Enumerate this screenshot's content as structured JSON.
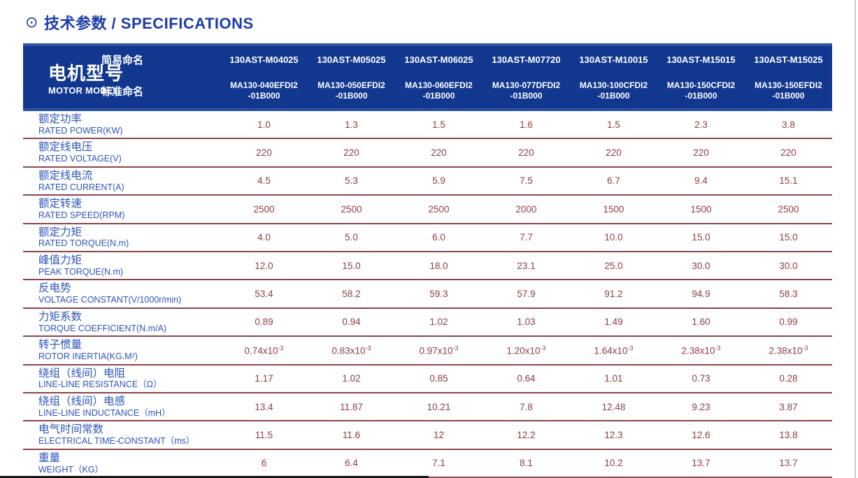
{
  "page": {
    "title_icon": "⊙",
    "title": "技术参数 / SPECIFICATIONS"
  },
  "colors": {
    "header_bg": "#11378f",
    "header_edge": "#2c51a5",
    "label_blue": "#2d54bc",
    "value_red": "#8e3d40",
    "separator": "#8d4548",
    "title_blue": "#1c3ca8"
  },
  "table": {
    "header": {
      "row_label_cn": "电机型号",
      "row_label_en": "MOTOR MODEL",
      "simple_name_label": "简易命名",
      "standard_name_label": "标准命名",
      "columns": [
        {
          "simple": "130AST-M04025",
          "standard_line1": "MA130-040EFDI2",
          "standard_line2": "-01B000"
        },
        {
          "simple": "130AST-M05025",
          "standard_line1": "MA130-050EFDI2",
          "standard_line2": "-01B000"
        },
        {
          "simple": "130AST-M06025",
          "standard_line1": "MA130-060EFDI2",
          "standard_line2": "-01B000"
        },
        {
          "simple": "130AST-M07720",
          "standard_line1": "MA130-077DFDI2",
          "standard_line2": "-01B000"
        },
        {
          "simple": "130AST-M10015",
          "standard_line1": "MA130-100CFDI2",
          "standard_line2": "-01B000"
        },
        {
          "simple": "130AST-M15015",
          "standard_line1": "MA130-150CFDI2",
          "standard_line2": "-01B000"
        },
        {
          "simple": "130AST-M15025",
          "standard_line1": "MA130-150EFDI2",
          "standard_line2": "-01B000"
        }
      ]
    },
    "rows": [
      {
        "cn": "额定功率",
        "en": "RATED POWER(KW)",
        "values": [
          "1.0",
          "1.3",
          "1.5",
          "1.6",
          "1.5",
          "2.3",
          "3.8"
        ]
      },
      {
        "cn": "额定线电压",
        "en": "RATED VOLTAGE(V)",
        "values": [
          "220",
          "220",
          "220",
          "220",
          "220",
          "220",
          "220"
        ]
      },
      {
        "cn": "额定线电流",
        "en": "RATED CURRENT(A)",
        "values": [
          "4.5",
          "5.3",
          "5.9",
          "7.5",
          "6.7",
          "9.4",
          "15.1"
        ]
      },
      {
        "cn": "额定转速",
        "en": "RATED SPEED(RPM)",
        "values": [
          "2500",
          "2500",
          "2500",
          "2000",
          "1500",
          "1500",
          "2500"
        ]
      },
      {
        "cn": "额定力矩",
        "en": "RATED TORQUE(N.m)",
        "values": [
          "4.0",
          "5.0",
          "6.0",
          "7.7",
          "10.0",
          "15.0",
          "15.0"
        ]
      },
      {
        "cn": "峰值力矩",
        "en": "PEAK TORQUE(N.m)",
        "values": [
          "12.0",
          "15.0",
          "18.0",
          "23.1",
          "25.0",
          "30.0",
          "30.0"
        ]
      },
      {
        "cn": "反电势",
        "en": "VOLTAGE CONSTANT(V/1000r/min)",
        "values": [
          "53.4",
          "58.2",
          "59.3",
          "57.9",
          "91.2",
          "94.9",
          "58.3"
        ]
      },
      {
        "cn": "力矩系数",
        "en": "TORQUE COEFFICIENT(N.m/A)",
        "values": [
          "0.89",
          "0.94",
          "1.02",
          "1.03",
          "1.49",
          "1.60",
          "0.99"
        ]
      },
      {
        "cn": "转子惯量",
        "en": "ROTOR INERTIA(KG.M²)",
        "values": [
          "0.74",
          "0.83",
          "0.97",
          "1.20",
          "1.64",
          "2.38",
          "2.38"
        ],
        "suffix": {
          "base": "x10",
          "sup": "-3"
        }
      },
      {
        "cn": "绕组（线间）电阻",
        "en": "LINE-LINE RESISTANCE（Ω）",
        "values": [
          "1.17",
          "1.02",
          "0.85",
          "0.64",
          "1.01",
          "0.73",
          "0.28"
        ]
      },
      {
        "cn": "绕组（线间）电感",
        "en": "LINE-LINE INDUCTANCE（mH）",
        "values": [
          "13.4",
          "11.87",
          "10.21",
          "7.8",
          "12.48",
          "9.23",
          "3.87"
        ]
      },
      {
        "cn": "电气时间常数",
        "en": "ELECTRICAL TIME-CONSTANT（ms）",
        "values": [
          "11.5",
          "11.6",
          "12",
          "12.2",
          "12.3",
          "12.6",
          "13.8"
        ]
      },
      {
        "cn": "重量",
        "en": "WEIGHT（KG）",
        "values": [
          "6",
          "6.4",
          "7.1",
          "8.1",
          "10.2",
          "13.7",
          "13.7"
        ]
      }
    ]
  }
}
